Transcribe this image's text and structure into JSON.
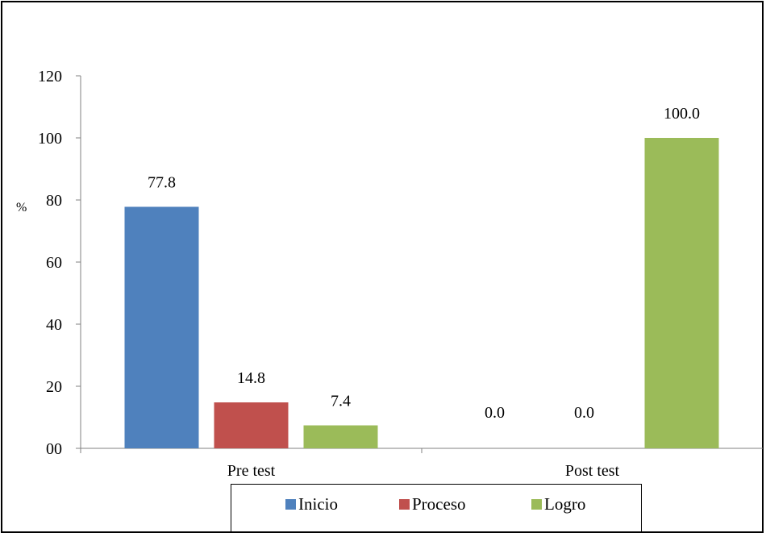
{
  "chart_data": {
    "type": "bar",
    "categories": [
      "Pre test",
      "Post test"
    ],
    "series": [
      {
        "name": "Inicio",
        "values": [
          77.8,
          0.0
        ],
        "labels": [
          "77.8",
          "0.0"
        ],
        "color": "#4f81bd"
      },
      {
        "name": "Proceso",
        "values": [
          14.8,
          0.0
        ],
        "labels": [
          "14.8",
          "0.0"
        ],
        "color": "#c0504d"
      },
      {
        "name": "Logro",
        "values": [
          7.4,
          100.0
        ],
        "labels": [
          "7.4",
          "100.0"
        ],
        "color": "#9bbb59"
      }
    ],
    "title": "",
    "xlabel": "",
    "ylabel": "%",
    "ylim": [
      0,
      120
    ],
    "yticks": [
      0,
      20,
      40,
      60,
      80,
      100,
      120
    ],
    "ytick_labels": [
      "00",
      "20",
      "40",
      "60",
      "80",
      "100",
      "120"
    ],
    "grid": false,
    "legend_position": "bottom"
  }
}
